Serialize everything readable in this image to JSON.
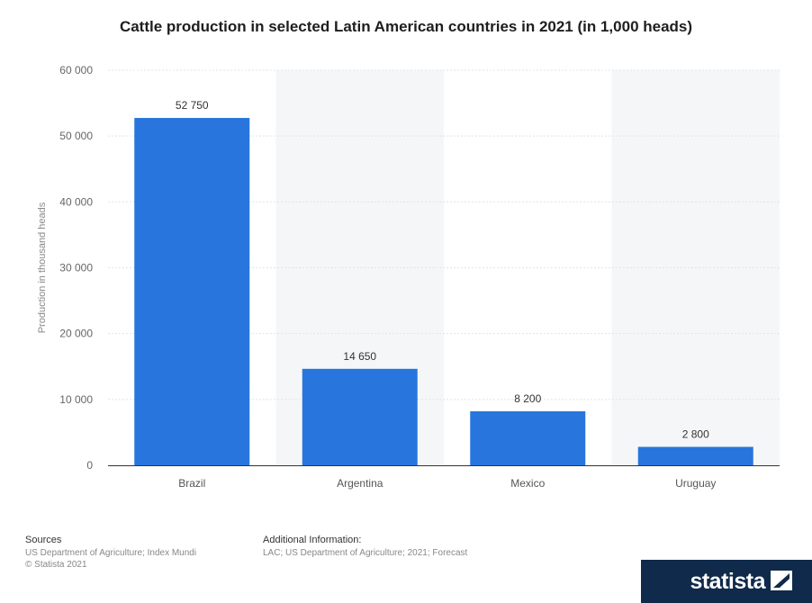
{
  "chart_data": {
    "type": "bar",
    "title": "Cattle production in selected Latin American countries in 2021 (in 1,000 heads)",
    "ylabel": "Production in thousand heads",
    "xlabel": "",
    "categories": [
      "Brazil",
      "Argentina",
      "Mexico",
      "Uruguay"
    ],
    "values": [
      52750,
      14650,
      8200,
      2800
    ],
    "data_labels": [
      "52 750",
      "14 650",
      "8 200",
      "2 800"
    ],
    "ylim": [
      0,
      60000
    ],
    "yticks": [
      0,
      10000,
      20000,
      30000,
      40000,
      50000,
      60000
    ],
    "ytick_labels": [
      "0",
      "10 000",
      "20 000",
      "30 000",
      "40 000",
      "50 000",
      "60 000"
    ],
    "grid": true,
    "bar_color": "#2876dd"
  },
  "footer": {
    "sources_heading": "Sources",
    "sources_text": "US Department of Agriculture; Index Mundi",
    "copyright": "© Statista 2021",
    "additional_heading": "Additional Information:",
    "additional_text": "LAC; US Department of Agriculture; 2021; Forecast"
  },
  "brand": {
    "name": "statista",
    "icon": "statista-logo-icon",
    "color": "#0f2a4a"
  }
}
